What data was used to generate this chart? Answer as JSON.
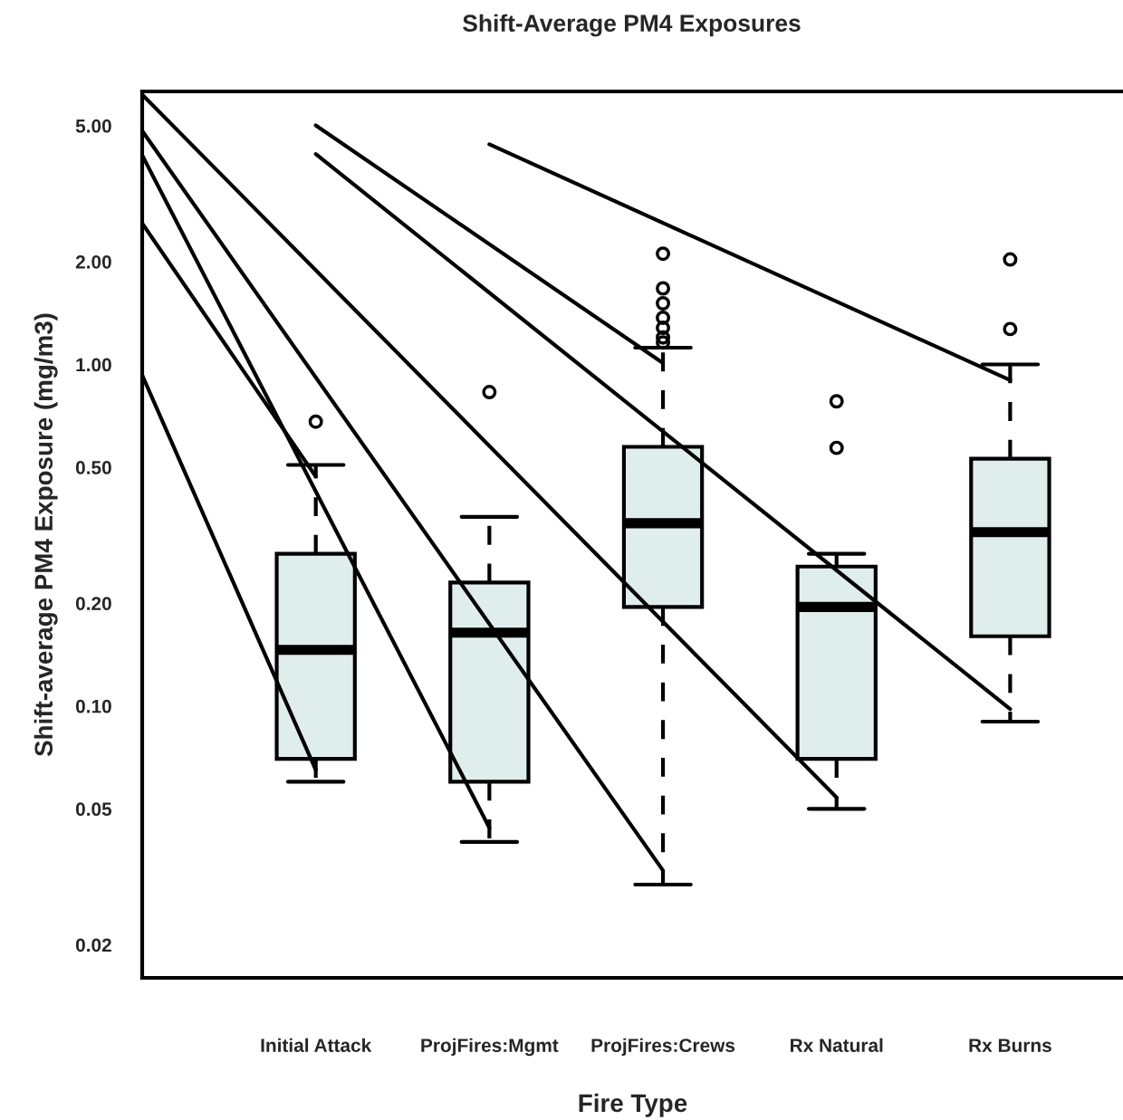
{
  "chart_data": {
    "type": "box",
    "title": "Shift-Average PM4 Exposures",
    "xlabel": "Fire Type",
    "ylabel": "Shift-average PM4 Exposure (mg/m3)",
    "categories": [
      null,
      "Initial Attack",
      "ProjFires:Mgmt",
      "ProjFires:Crews",
      "Rx Natural",
      "Rx Burns"
    ],
    "boxes": [
      null,
      {
        "low": 0.06,
        "q1": 0.07,
        "median": 0.146,
        "q3": 0.279,
        "high": 0.508,
        "outliers": [
          0.68
        ]
      },
      {
        "low": 0.04,
        "q1": 0.06,
        "median": 0.164,
        "q3": 0.23,
        "high": 0.358,
        "outliers": [
          0.83
        ]
      },
      {
        "low": 0.03,
        "q1": 0.195,
        "median": 0.343,
        "q3": 0.574,
        "high": 1.12,
        "outliers": [
          2.11,
          1.67,
          1.51,
          1.37,
          1.28,
          1.2,
          1.16
        ]
      },
      {
        "low": 0.05,
        "q1": 0.07,
        "median": 0.195,
        "q3": 0.256,
        "high": 0.279,
        "outliers": [
          0.78,
          0.57
        ]
      },
      {
        "low": 0.09,
        "q1": 0.16,
        "median": 0.323,
        "q3": 0.53,
        "high": 1.0,
        "outliers": [
          2.03,
          1.27
        ]
      }
    ],
    "color": "#e0eded",
    "series": [
      {
        "type": "line",
        "color": "#000000",
        "values": [
          0.93,
          0.065,
          null,
          null,
          null,
          null
        ]
      },
      {
        "type": "line",
        "color": "#000000",
        "values": [
          2.59,
          0.47,
          null,
          null,
          null,
          null
        ]
      },
      {
        "type": "line",
        "color": "#000000",
        "values": [
          4.1,
          null,
          0.044,
          null,
          null,
          null
        ]
      },
      {
        "type": "line",
        "color": "#000000",
        "values": [
          4.83,
          null,
          null,
          0.033,
          null,
          null
        ]
      },
      {
        "type": "line",
        "color": "#000000",
        "values": [
          6.17,
          null,
          null,
          null,
          0.054,
          null
        ]
      },
      {
        "type": "line",
        "color": "#000000",
        "values": [
          null,
          4.13,
          null,
          null,
          null,
          0.098
        ]
      },
      {
        "type": "line",
        "color": "#000000",
        "values": [
          null,
          5.01,
          null,
          1.01,
          null,
          null
        ]
      },
      {
        "type": "line",
        "color": "#000000",
        "values": [
          null,
          null,
          4.41,
          null,
          null,
          0.9
        ]
      }
    ],
    "ylim": [
      0.016,
      6.3
    ],
    "log": "y",
    "yticks": [
      {
        "value": 5,
        "label": "5.00"
      },
      {
        "value": 2,
        "label": "2.00"
      },
      {
        "value": 1,
        "label": "1.00"
      },
      {
        "value": 0.5,
        "label": "0.50"
      },
      {
        "value": 0.2,
        "label": "0.20"
      },
      {
        "value": 0.1,
        "label": "0.10"
      },
      {
        "value": 0.05,
        "label": "0.05"
      },
      {
        "value": 0.02,
        "label": "0.02"
      }
    ],
    "grid": false,
    "legend": false,
    "line_style": "solid",
    "marker": "none"
  }
}
